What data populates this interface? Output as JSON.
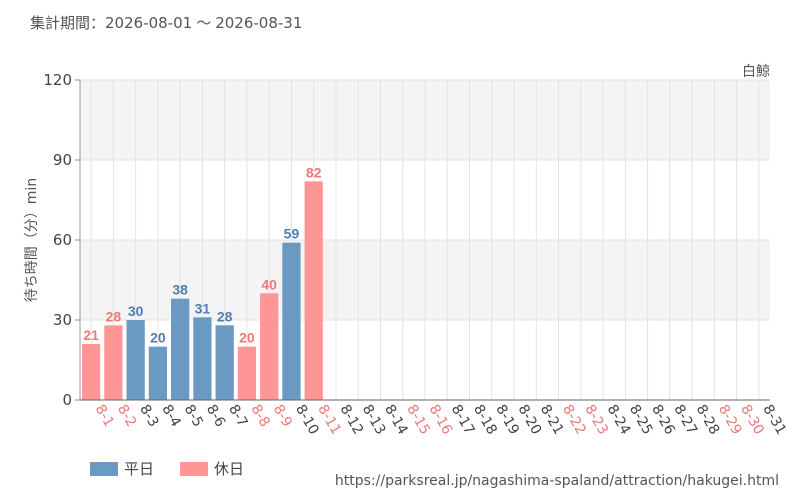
{
  "header": {
    "period_label": "集計期間：2026-08-01",
    "period_sep": "～",
    "period_end": "2026-08-31",
    "attraction": "白鯨"
  },
  "legend": {
    "weekday": "平日",
    "holiday": "休日"
  },
  "source_url": "https://parksreal.jp/nagashima-spaland/attraction/hakugei.html",
  "colors": {
    "weekday": "#6a9ac2",
    "holiday": "#ff9696",
    "weekday_label": "#4f7fb0",
    "holiday_label": "#f07878",
    "band": "#f4f4f4",
    "grid": "#e4e4e4"
  },
  "chart_data": {
    "type": "bar",
    "title": "",
    "xlabel": "",
    "ylabel": "待ち時間（分）min",
    "ylim": [
      0,
      120
    ],
    "yticks": [
      0,
      30,
      60,
      90,
      120
    ],
    "categories": [
      "8-1",
      "8-2",
      "8-3",
      "8-4",
      "8-5",
      "8-6",
      "8-7",
      "8-8",
      "8-9",
      "8-10",
      "8-11",
      "8-12",
      "8-13",
      "8-14",
      "8-15",
      "8-16",
      "8-17",
      "8-18",
      "8-19",
      "8-20",
      "8-21",
      "8-22",
      "8-23",
      "8-24",
      "8-25",
      "8-26",
      "8-27",
      "8-28",
      "8-29",
      "8-30",
      "8-31"
    ],
    "day_type": [
      "holiday",
      "holiday",
      "weekday",
      "weekday",
      "weekday",
      "weekday",
      "weekday",
      "holiday",
      "holiday",
      "weekday",
      "holiday",
      "weekday",
      "weekday",
      "weekday",
      "holiday",
      "holiday",
      "weekday",
      "weekday",
      "weekday",
      "weekday",
      "weekday",
      "holiday",
      "holiday",
      "weekday",
      "weekday",
      "weekday",
      "weekday",
      "weekday",
      "holiday",
      "holiday",
      "weekday"
    ],
    "values": [
      21,
      28,
      30,
      20,
      38,
      31,
      28,
      20,
      40,
      59,
      82,
      null,
      null,
      null,
      null,
      null,
      null,
      null,
      null,
      null,
      null,
      null,
      null,
      null,
      null,
      null,
      null,
      null,
      null,
      null,
      null
    ],
    "series": [
      {
        "name": "平日",
        "key": "weekday"
      },
      {
        "name": "休日",
        "key": "holiday"
      }
    ]
  }
}
